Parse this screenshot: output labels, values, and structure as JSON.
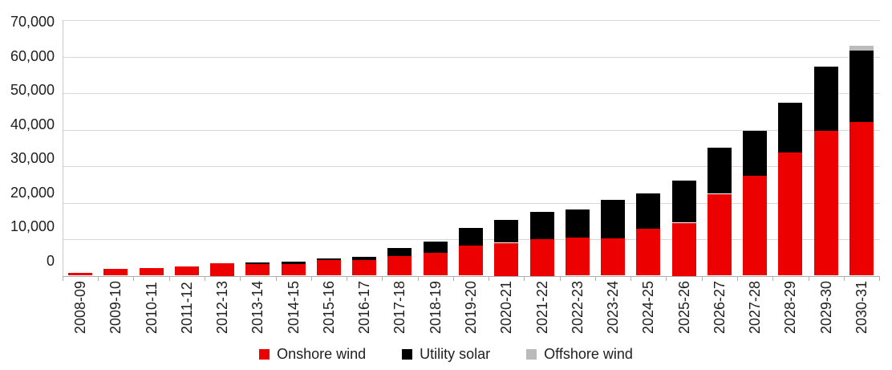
{
  "chart_data": {
    "type": "bar",
    "stacked": true,
    "grid": true,
    "legend_position": "bottom",
    "categories": [
      "2008-09",
      "2009-10",
      "2010-11",
      "2011-12",
      "2012-13",
      "2013-14",
      "2014-15",
      "2015-16",
      "2016-17",
      "2017-18",
      "2018-19",
      "2019-20",
      "2020-21",
      "2021-22",
      "2022-23",
      "2023-24",
      "2024-25",
      "2025-26",
      "2026-27",
      "2027-28",
      "2028-29",
      "2029-30",
      "2030-31"
    ],
    "series": [
      {
        "name": "Onshore wind",
        "color": "#ed0000",
        "values": [
          800,
          1900,
          2000,
          2500,
          3400,
          3100,
          3200,
          4200,
          4300,
          5300,
          6200,
          8300,
          9000,
          10000,
          10500,
          10300,
          12900,
          14500,
          22400,
          27300,
          33700,
          39600,
          42000
        ]
      },
      {
        "name": "Utility solar",
        "color": "#000000",
        "values": [
          0,
          0,
          0,
          0,
          0,
          600,
          600,
          500,
          900,
          2400,
          3200,
          4700,
          6200,
          7400,
          7700,
          10400,
          9700,
          11500,
          12600,
          12300,
          13600,
          17600,
          19700
        ]
      },
      {
        "name": "Offshore wind",
        "color": "#bbbbbb",
        "values": [
          0,
          0,
          0,
          0,
          0,
          0,
          0,
          0,
          0,
          0,
          0,
          0,
          0,
          0,
          0,
          0,
          0,
          0,
          0,
          0,
          0,
          0,
          1300
        ]
      }
    ],
    "y_axis": {
      "min": 0,
      "max": 70000,
      "tick_interval": 10000,
      "tick_labels": [
        "0",
        "10,000",
        "20,000",
        "30,000",
        "40,000",
        "50,000",
        "60,000",
        "70,000"
      ]
    },
    "x_axis": {
      "label_rotation_degrees": 90
    }
  },
  "colors": {
    "gridline": "#d8d8d8",
    "axis": "#adadad",
    "text": "#202020"
  }
}
